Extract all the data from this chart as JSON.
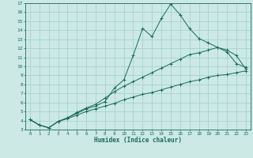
{
  "xlabel": "Humidex (Indice chaleur)",
  "ylabel": "",
  "bg_color": "#cce9e5",
  "grid_color": "#9dcec9",
  "line_color": "#1a6b5a",
  "xlim": [
    -0.5,
    23.5
  ],
  "ylim": [
    3,
    17
  ],
  "xticks": [
    0,
    1,
    2,
    3,
    4,
    5,
    6,
    7,
    8,
    9,
    10,
    11,
    12,
    13,
    14,
    15,
    16,
    17,
    18,
    19,
    20,
    21,
    22,
    23
  ],
  "yticks": [
    3,
    4,
    5,
    6,
    7,
    8,
    9,
    10,
    11,
    12,
    13,
    14,
    15,
    16,
    17
  ],
  "curve1_x": [
    0,
    1,
    2,
    3,
    4,
    5,
    6,
    7,
    8,
    9,
    10,
    11,
    12,
    13,
    14,
    15,
    16,
    17,
    18,
    19,
    20,
    21,
    22,
    23
  ],
  "curve1_y": [
    4.1,
    3.5,
    3.2,
    3.9,
    4.3,
    4.8,
    5.3,
    5.6,
    6.1,
    7.6,
    8.5,
    11.2,
    14.2,
    13.3,
    15.3,
    16.9,
    15.7,
    14.2,
    13.1,
    12.6,
    12.1,
    11.6,
    10.3,
    9.9
  ],
  "curve2_x": [
    0,
    1,
    2,
    3,
    4,
    5,
    6,
    7,
    8,
    9,
    10,
    11,
    12,
    13,
    14,
    15,
    16,
    17,
    18,
    19,
    20,
    21,
    22,
    23
  ],
  "curve2_y": [
    4.1,
    3.5,
    3.2,
    3.9,
    4.3,
    4.9,
    5.4,
    5.8,
    6.5,
    7.2,
    7.8,
    8.3,
    8.8,
    9.3,
    9.8,
    10.3,
    10.8,
    11.3,
    11.5,
    11.8,
    12.1,
    11.8,
    11.2,
    9.7
  ],
  "curve3_x": [
    0,
    1,
    2,
    3,
    4,
    5,
    6,
    7,
    8,
    9,
    10,
    11,
    12,
    13,
    14,
    15,
    16,
    17,
    18,
    19,
    20,
    21,
    22,
    23
  ],
  "curve3_y": [
    4.1,
    3.5,
    3.2,
    3.9,
    4.2,
    4.6,
    5.0,
    5.3,
    5.6,
    5.9,
    6.3,
    6.6,
    6.9,
    7.1,
    7.4,
    7.7,
    8.0,
    8.3,
    8.5,
    8.8,
    9.0,
    9.1,
    9.3,
    9.5
  ]
}
